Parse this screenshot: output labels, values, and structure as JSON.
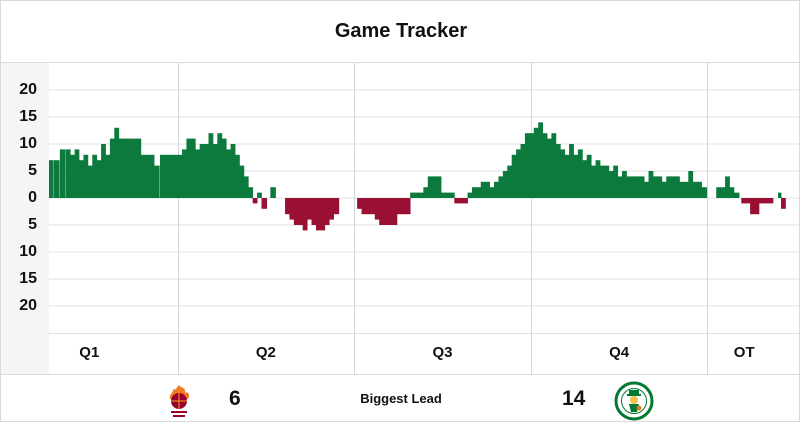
{
  "header": {
    "title": "Game Tracker"
  },
  "footer": {
    "biggest_lead_label": "Biggest Lead",
    "away": {
      "logo_text": "MIAMI HEAT",
      "logo_icon": "heat-flaming-ball-icon",
      "biggest_lead": "6"
    },
    "home": {
      "logo_text": "CELTICS",
      "logo_icon": "celtics-leprechaun-icon",
      "biggest_lead": "14"
    }
  },
  "colors": {
    "home_lead": "#0c7a3c",
    "away_lead": "#9a1034",
    "grid": "#e0e0e0",
    "axis_panel": "#f5f5f5"
  },
  "chart_data": {
    "type": "bar",
    "title": "Game Tracker",
    "categories": [
      "Q1",
      "Q2",
      "Q3",
      "Q4",
      "OT"
    ],
    "y_tick_labels": [
      "20",
      "15",
      "10",
      "5",
      "0",
      "5",
      "10",
      "15",
      "20"
    ],
    "ylim": [
      -25,
      20
    ],
    "grid": true,
    "legend": "none",
    "x_unit": "game minutes",
    "period_boundaries": [
      0,
      12,
      24,
      36,
      48,
      53
    ],
    "series": [
      {
        "values": [
          [
            0.8,
            3
          ],
          [
            1.2,
            5
          ],
          [
            1.5,
            5
          ],
          [
            1.8,
            8
          ],
          [
            2.1,
            5
          ],
          [
            2.4,
            6
          ],
          [
            2.8,
            7
          ],
          [
            3.2,
            7
          ],
          [
            3.6,
            7
          ],
          [
            4,
            9
          ],
          [
            4.4,
            9
          ],
          [
            4.7,
            8
          ],
          [
            5,
            9
          ],
          [
            5.3,
            7
          ],
          [
            5.6,
            8
          ],
          [
            5.9,
            6
          ],
          [
            6.2,
            8
          ],
          [
            6.5,
            7
          ],
          [
            6.8,
            10
          ],
          [
            7.1,
            8
          ],
          [
            7.4,
            11
          ],
          [
            7.7,
            13
          ],
          [
            8,
            11
          ],
          [
            8.3,
            11
          ],
          [
            8.6,
            11
          ],
          [
            8.9,
            11
          ],
          [
            9.2,
            11
          ],
          [
            9.5,
            8
          ],
          [
            9.8,
            8
          ],
          [
            10.1,
            8
          ],
          [
            10.4,
            6
          ],
          [
            10.8,
            8
          ],
          [
            11.1,
            8
          ],
          [
            11.4,
            8
          ],
          [
            11.7,
            8
          ],
          [
            12,
            8
          ],
          [
            12.3,
            9
          ],
          [
            12.6,
            11
          ],
          [
            12.9,
            11
          ],
          [
            13.2,
            9
          ],
          [
            13.5,
            10
          ],
          [
            13.8,
            10
          ],
          [
            14.1,
            12
          ],
          [
            14.4,
            10
          ],
          [
            14.7,
            12
          ],
          [
            15,
            11
          ],
          [
            15.3,
            9
          ],
          [
            15.6,
            10
          ],
          [
            15.9,
            8
          ],
          [
            16.2,
            6
          ],
          [
            16.5,
            4
          ],
          [
            16.8,
            2
          ],
          [
            17.1,
            -1
          ],
          [
            17.4,
            1
          ],
          [
            17.7,
            -2
          ],
          [
            18.3,
            2
          ],
          [
            19.3,
            -3
          ],
          [
            19.6,
            -4
          ],
          [
            19.9,
            -5
          ],
          [
            20.2,
            -5
          ],
          [
            20.5,
            -6
          ],
          [
            20.8,
            -4
          ],
          [
            21.1,
            -5
          ],
          [
            21.4,
            -6
          ],
          [
            21.7,
            -6
          ],
          [
            22,
            -5
          ],
          [
            22.3,
            -4
          ],
          [
            22.6,
            -3
          ],
          [
            24.2,
            -2
          ],
          [
            24.5,
            -3
          ],
          [
            24.8,
            -3
          ],
          [
            25.1,
            -3
          ],
          [
            25.4,
            -4
          ],
          [
            25.7,
            -5
          ],
          [
            26,
            -5
          ],
          [
            26.3,
            -5
          ],
          [
            26.6,
            -5
          ],
          [
            26.9,
            -3
          ],
          [
            27.2,
            -3
          ],
          [
            27.5,
            -3
          ],
          [
            27.8,
            1
          ],
          [
            28.1,
            1
          ],
          [
            28.4,
            1
          ],
          [
            28.7,
            2
          ],
          [
            29,
            4
          ],
          [
            29.3,
            4
          ],
          [
            29.6,
            4
          ],
          [
            29.9,
            1
          ],
          [
            30.2,
            1
          ],
          [
            30.5,
            1
          ],
          [
            30.8,
            -1
          ],
          [
            31.1,
            -1
          ],
          [
            31.4,
            -1
          ],
          [
            31.7,
            1
          ],
          [
            32,
            2
          ],
          [
            32.3,
            2
          ],
          [
            32.6,
            3
          ],
          [
            32.9,
            3
          ],
          [
            33.2,
            2
          ],
          [
            33.5,
            3
          ],
          [
            33.8,
            4
          ],
          [
            34.1,
            5
          ],
          [
            34.4,
            6
          ],
          [
            34.7,
            8
          ],
          [
            35,
            9
          ],
          [
            35.3,
            10
          ],
          [
            35.6,
            12
          ],
          [
            35.9,
            12
          ],
          [
            36.2,
            13
          ],
          [
            36.5,
            14
          ],
          [
            36.8,
            12
          ],
          [
            37.1,
            11
          ],
          [
            37.4,
            12
          ],
          [
            37.7,
            10
          ],
          [
            38,
            9
          ],
          [
            38.3,
            8
          ],
          [
            38.6,
            10
          ],
          [
            38.9,
            8
          ],
          [
            39.2,
            9
          ],
          [
            39.5,
            7
          ],
          [
            39.8,
            8
          ],
          [
            40.1,
            6
          ],
          [
            40.4,
            7
          ],
          [
            40.7,
            6
          ],
          [
            41,
            6
          ],
          [
            41.3,
            5
          ],
          [
            41.6,
            6
          ],
          [
            41.9,
            4
          ],
          [
            42.2,
            5
          ],
          [
            42.5,
            4
          ],
          [
            42.8,
            4
          ],
          [
            43.1,
            4
          ],
          [
            43.4,
            4
          ],
          [
            43.7,
            3
          ],
          [
            44,
            5
          ],
          [
            44.3,
            4
          ],
          [
            44.6,
            4
          ],
          [
            44.9,
            3
          ],
          [
            45.2,
            4
          ],
          [
            45.5,
            4
          ],
          [
            45.8,
            4
          ],
          [
            46.1,
            3
          ],
          [
            46.4,
            3
          ],
          [
            46.7,
            5
          ],
          [
            47,
            3
          ],
          [
            47.3,
            3
          ],
          [
            47.6,
            2
          ],
          [
            48.6,
            2
          ],
          [
            48.9,
            2
          ],
          [
            49.2,
            4
          ],
          [
            49.5,
            2
          ],
          [
            49.8,
            1
          ],
          [
            50.3,
            -1
          ],
          [
            50.6,
            -1
          ],
          [
            50.9,
            -3
          ],
          [
            51.2,
            -3
          ],
          [
            51.5,
            -1
          ],
          [
            51.8,
            -1
          ],
          [
            52.1,
            -1
          ],
          [
            52.8,
            1
          ],
          [
            53,
            -2
          ]
        ]
      }
    ]
  }
}
